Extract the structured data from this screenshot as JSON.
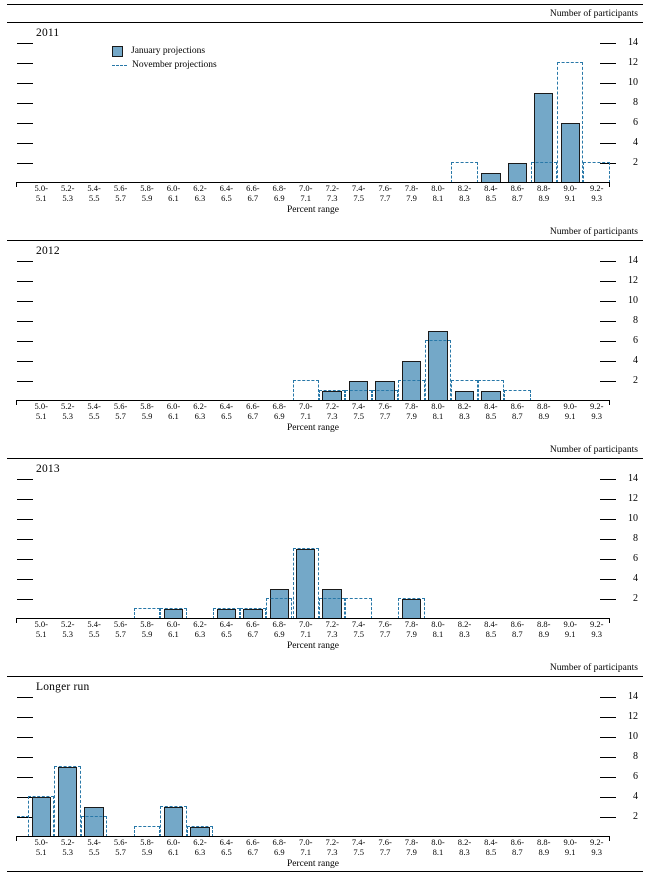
{
  "figure": {
    "kind": "histogram-figure",
    "panel_count": 4
  },
  "legend": {
    "items": [
      {
        "label": "January projections",
        "swatch": "solid-bar-swatch"
      },
      {
        "label": "November projections",
        "swatch": "dashed-line-swatch"
      }
    ]
  },
  "colors": {
    "bar_fill": "#74a8c8",
    "bar_border": "#1a1a1a",
    "dash_blue": "#2878a8"
  },
  "chart_data": {
    "type": "bar",
    "subtype": "histogram-distribution",
    "axis": {
      "right_label": "Number of participants",
      "x_label": "Percent range",
      "ticks": [
        2,
        4,
        6,
        8,
        10,
        12,
        14
      ],
      "ylim": [
        0,
        16
      ],
      "grid": false,
      "legend_position": "top-left-first-panel"
    },
    "bins": [
      [
        "5.0-",
        "5.1"
      ],
      [
        "5.2-",
        "5.3"
      ],
      [
        "5.4-",
        "5.5"
      ],
      [
        "5.6-",
        "5.7"
      ],
      [
        "5.8-",
        "5.9"
      ],
      [
        "6.0-",
        "6.1"
      ],
      [
        "6.2-",
        "6.3"
      ],
      [
        "6.4-",
        "6.5"
      ],
      [
        "6.6-",
        "6.7"
      ],
      [
        "6.8-",
        "6.9"
      ],
      [
        "7.0-",
        "7.1"
      ],
      [
        "7.2-",
        "7.3"
      ],
      [
        "7.4-",
        "7.5"
      ],
      [
        "7.6-",
        "7.7"
      ],
      [
        "7.8-",
        "7.9"
      ],
      [
        "8.0-",
        "8.1"
      ],
      [
        "8.2-",
        "8.3"
      ],
      [
        "8.4-",
        "8.5"
      ],
      [
        "8.6-",
        "8.7"
      ],
      [
        "8.8-",
        "8.9"
      ],
      [
        "9.0-",
        "9.1"
      ],
      [
        "9.2-",
        "9.3"
      ]
    ],
    "series_names": [
      "January projections",
      "November projections"
    ],
    "panels": [
      {
        "title": "2011",
        "has_legend": true,
        "january": [
          0,
          0,
          0,
          0,
          0,
          0,
          0,
          0,
          0,
          0,
          0,
          0,
          0,
          0,
          0,
          0,
          0,
          1,
          2,
          9,
          6,
          0
        ],
        "november": [
          0,
          0,
          0,
          0,
          0,
          0,
          0,
          0,
          0,
          0,
          0,
          0,
          0,
          0,
          0,
          0,
          2,
          0,
          0,
          2,
          12,
          2
        ],
        "november_pre_axis": 0
      },
      {
        "title": "2012",
        "has_legend": false,
        "january": [
          0,
          0,
          0,
          0,
          0,
          0,
          0,
          0,
          0,
          0,
          0,
          1,
          2,
          2,
          4,
          7,
          1,
          1,
          0,
          0,
          0,
          0
        ],
        "november": [
          0,
          0,
          0,
          0,
          0,
          0,
          0,
          0,
          0,
          0,
          2,
          1,
          1,
          1,
          2,
          6,
          2,
          2,
          1,
          0,
          0,
          0
        ],
        "november_pre_axis": 0
      },
      {
        "title": "2013",
        "has_legend": false,
        "january": [
          0,
          0,
          0,
          0,
          0,
          1,
          0,
          1,
          1,
          3,
          7,
          3,
          0,
          0,
          2,
          0,
          0,
          0,
          0,
          0,
          0,
          0
        ],
        "november": [
          0,
          0,
          0,
          0,
          1,
          1,
          0,
          1,
          1,
          2,
          7,
          2,
          2,
          0,
          2,
          0,
          0,
          0,
          0,
          0,
          0,
          0
        ],
        "november_pre_axis": 0
      },
      {
        "title": "Longer run",
        "has_legend": false,
        "january": [
          4,
          7,
          3,
          0,
          0,
          3,
          1,
          0,
          0,
          0,
          0,
          0,
          0,
          0,
          0,
          0,
          0,
          0,
          0,
          0,
          0,
          0
        ],
        "november": [
          4,
          7,
          2,
          0,
          1,
          3,
          1,
          0,
          0,
          0,
          0,
          0,
          0,
          0,
          0,
          0,
          0,
          0,
          0,
          0,
          0,
          0
        ],
        "november_pre_axis": 2
      }
    ]
  }
}
